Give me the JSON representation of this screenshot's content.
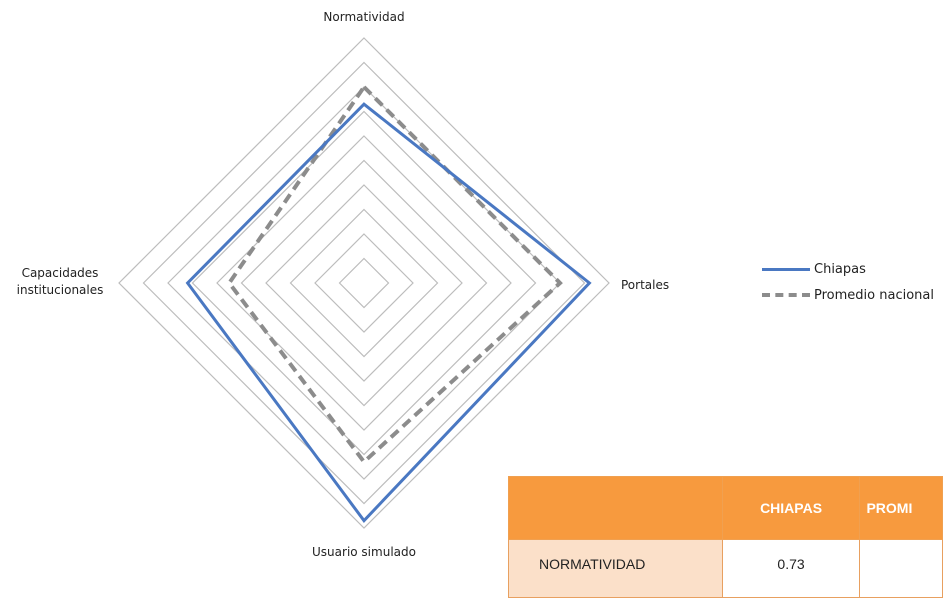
{
  "chart_data": {
    "type": "radar",
    "axes": [
      "Normatividad",
      "Portales",
      "Usuario simulado",
      "Capacidades institucionales"
    ],
    "axis_labels": {
      "top": "Normatividad",
      "right": "Portales",
      "bottom": "Usuario simulado",
      "left_line1": "Capacidades",
      "left_line2": "institucionales"
    },
    "range": [
      0,
      1
    ],
    "grid_levels": 10,
    "series": [
      {
        "name": "Chiapas",
        "values": [
          0.73,
          0.92,
          0.97,
          0.72
        ],
        "color": "#4a78c2",
        "style": "solid"
      },
      {
        "name": "Promedio nacional",
        "values": [
          0.8,
          0.8,
          0.73,
          0.55
        ],
        "color": "#8c8c8c",
        "style": "dashed"
      }
    ],
    "legend_position": "right"
  },
  "table": {
    "headers": [
      "",
      "CHIAPAS",
      "PROMI"
    ],
    "rows": [
      {
        "label": "NORMATIVIDAD",
        "chiapas": "0.73",
        "promedio": ""
      }
    ]
  },
  "colors": {
    "header": "#f79a3e",
    "row_label_bg": "#fbe0c9",
    "grid": "#bdbdbd"
  }
}
